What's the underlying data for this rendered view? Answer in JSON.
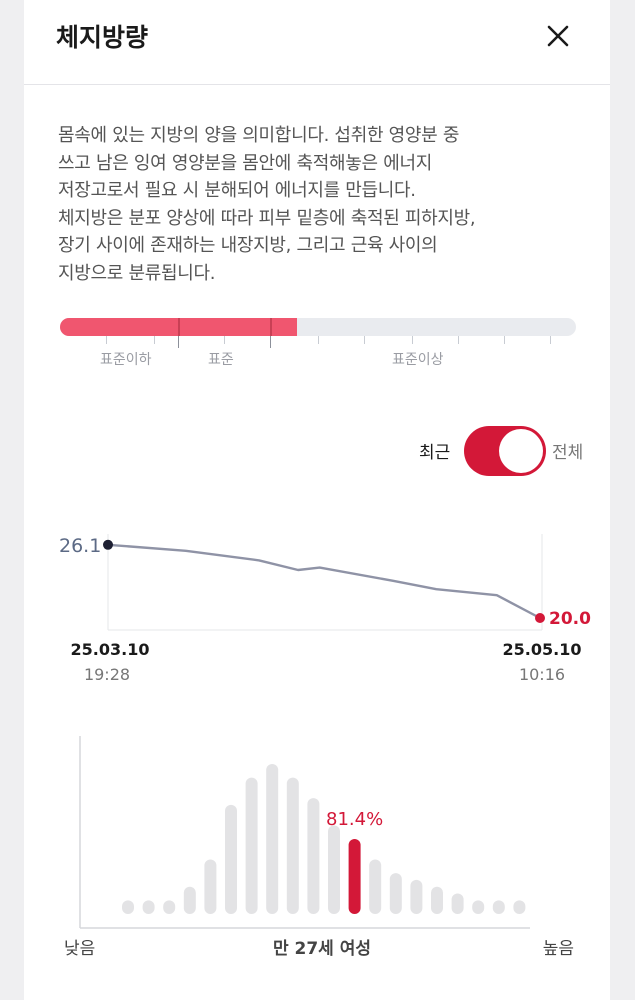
{
  "header": {
    "title": "체지방량"
  },
  "description": "몸속에 있는 지방의 양을 의미합니다. 섭취한 영양분 중\n쓰고 남은 잉여 영양분을 몸안에 축적해놓은 에너지\n저장고로서 필요 시 분해되어 에너지를 만듭니다.\n체지방은 분포 양상에 따라 피부 밑층에 축적된 피하지방,\n장기 사이에 존재하는 내장지방, 그리고 근육 사이의\n지방으로 분류됩니다.",
  "range": {
    "fill_fraction": 0.46,
    "labels": {
      "below": "표준이하",
      "standard": "표준",
      "above": "표준이상"
    }
  },
  "toggle": {
    "left_label": "최근",
    "right_label": "전체"
  },
  "colors": {
    "accent": "#d31838",
    "range_fill": "#f0566f",
    "line": "#8f93a6"
  },
  "chart_data": [
    {
      "type": "line",
      "x": [
        "25.03.10 19:28",
        "",
        "",
        "",
        "",
        "",
        "",
        "",
        "25.05.10 10:16"
      ],
      "values": [
        26.1,
        25.6,
        24.8,
        24.0,
        24.2,
        23.1,
        22.4,
        21.9,
        20.0
      ],
      "start_value_label": "26.1",
      "end_value_label": "20.0",
      "start_date": "25.03.10",
      "start_time": "19:28",
      "end_date": "25.05.10",
      "end_time": "10:16",
      "ylim": [
        19,
        27
      ]
    },
    {
      "type": "bar",
      "values": [
        2,
        2,
        2,
        4,
        8,
        16,
        20,
        22,
        20,
        17,
        13,
        11,
        8,
        6,
        5,
        4,
        3,
        2,
        2,
        2
      ],
      "highlight_index": 11,
      "highlight_label": "81.4%",
      "xlabel_left": "낮음",
      "xlabel_center": "만 27세 여성",
      "xlabel_right": "높음"
    }
  ]
}
